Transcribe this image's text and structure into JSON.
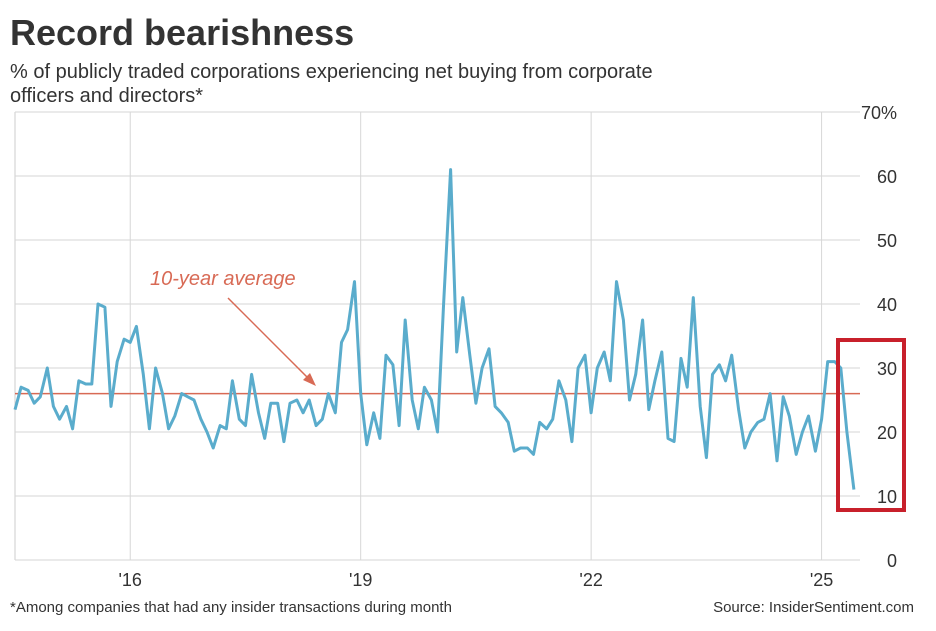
{
  "chart_data": {
    "type": "line",
    "title": "Record bearishness",
    "subtitle": [
      "% of publicly traded corporations experiencing net buying from corporate",
      "officers and directors*"
    ],
    "footnote": "*Among companies that had any insider transactions during month",
    "source": "Source: InsiderSentiment.com",
    "annotation": {
      "text": "10-year average",
      "value": 26,
      "color": "#d86a55"
    },
    "xlim": [
      2014.5,
      2025.5
    ],
    "xticks": [
      {
        "value": 2016,
        "label": "'16"
      },
      {
        "value": 2019,
        "label": "'19"
      },
      {
        "value": 2022,
        "label": "'22"
      },
      {
        "value": 2025,
        "label": "'25"
      }
    ],
    "ylim": [
      0,
      70
    ],
    "yticks": [
      0,
      10,
      20,
      30,
      40,
      50,
      60,
      {
        "value": 70,
        "label": "70%"
      }
    ],
    "grid": true,
    "series": [
      {
        "color": "#5aaccc",
        "x": [
          2014.5,
          2014.58,
          2014.67,
          2014.75,
          2014.83,
          2014.92,
          2015,
          2015.08,
          2015.17,
          2015.25,
          2015.33,
          2015.42,
          2015.5,
          2015.58,
          2015.67,
          2015.75,
          2015.83,
          2015.92,
          2016,
          2016.08,
          2016.17,
          2016.25,
          2016.33,
          2016.42,
          2016.5,
          2016.58,
          2016.67,
          2016.75,
          2016.83,
          2016.92,
          2017,
          2017.08,
          2017.17,
          2017.25,
          2017.33,
          2017.42,
          2017.5,
          2017.58,
          2017.67,
          2017.75,
          2017.83,
          2017.92,
          2018,
          2018.08,
          2018.17,
          2018.25,
          2018.33,
          2018.42,
          2018.5,
          2018.58,
          2018.67,
          2018.75,
          2018.83,
          2018.92,
          2019,
          2019.08,
          2019.17,
          2019.25,
          2019.33,
          2019.42,
          2019.5,
          2019.58,
          2019.67,
          2019.75,
          2019.83,
          2019.92,
          2020,
          2020.08,
          2020.17,
          2020.25,
          2020.33,
          2020.42,
          2020.5,
          2020.58,
          2020.67,
          2020.75,
          2020.83,
          2020.92,
          2021,
          2021.08,
          2021.17,
          2021.25,
          2021.33,
          2021.42,
          2021.5,
          2021.58,
          2021.67,
          2021.75,
          2021.83,
          2021.92,
          2022,
          2022.08,
          2022.17,
          2022.25,
          2022.33,
          2022.42,
          2022.5,
          2022.58,
          2022.67,
          2022.75,
          2022.83,
          2022.92,
          2023,
          2023.08,
          2023.17,
          2023.25,
          2023.33,
          2023.42,
          2023.5,
          2023.58,
          2023.67,
          2023.75,
          2023.83,
          2023.92,
          2024,
          2024.08,
          2024.17,
          2024.25,
          2024.33,
          2024.42,
          2024.5,
          2024.58,
          2024.67,
          2024.75,
          2024.83,
          2024.92,
          2025,
          2025.08,
          2025.17,
          2025.25,
          2025.33,
          2025.42
        ],
        "values": [
          23.5,
          27,
          26.5,
          24.5,
          25.5,
          30,
          24,
          22,
          24,
          20.5,
          28,
          27.5,
          27.5,
          40,
          39.5,
          24,
          31,
          34.5,
          34,
          36.5,
          29,
          20.5,
          30,
          26,
          20.5,
          22.5,
          26,
          25.5,
          25,
          22,
          20,
          17.5,
          21,
          20.5,
          28,
          22,
          21,
          29,
          23,
          19,
          24.5,
          24.5,
          18.5,
          24.5,
          25,
          23,
          25,
          21,
          22,
          26,
          23,
          34,
          36,
          43.5,
          26,
          18,
          23,
          19,
          32,
          30.5,
          21,
          37.5,
          25,
          20.5,
          27,
          25,
          20,
          40,
          61,
          32.5,
          41,
          32,
          24.5,
          30,
          33,
          24,
          23,
          21.5,
          17,
          17.5,
          17.5,
          16.5,
          21.5,
          20.5,
          22,
          28,
          25,
          18.5,
          30,
          32,
          23,
          30,
          32.5,
          28,
          43.5,
          37.5,
          25,
          29,
          37.5,
          23.5,
          28,
          32.5,
          19,
          18.5,
          31.5,
          27,
          41,
          24,
          16,
          29,
          30.5,
          28,
          32,
          23.5,
          17.5,
          20,
          21.5,
          22,
          26,
          15.5,
          25.5,
          22.5,
          16.5,
          20,
          22.5,
          17,
          22,
          31,
          31,
          30,
          20,
          11
        ]
      }
    ]
  }
}
